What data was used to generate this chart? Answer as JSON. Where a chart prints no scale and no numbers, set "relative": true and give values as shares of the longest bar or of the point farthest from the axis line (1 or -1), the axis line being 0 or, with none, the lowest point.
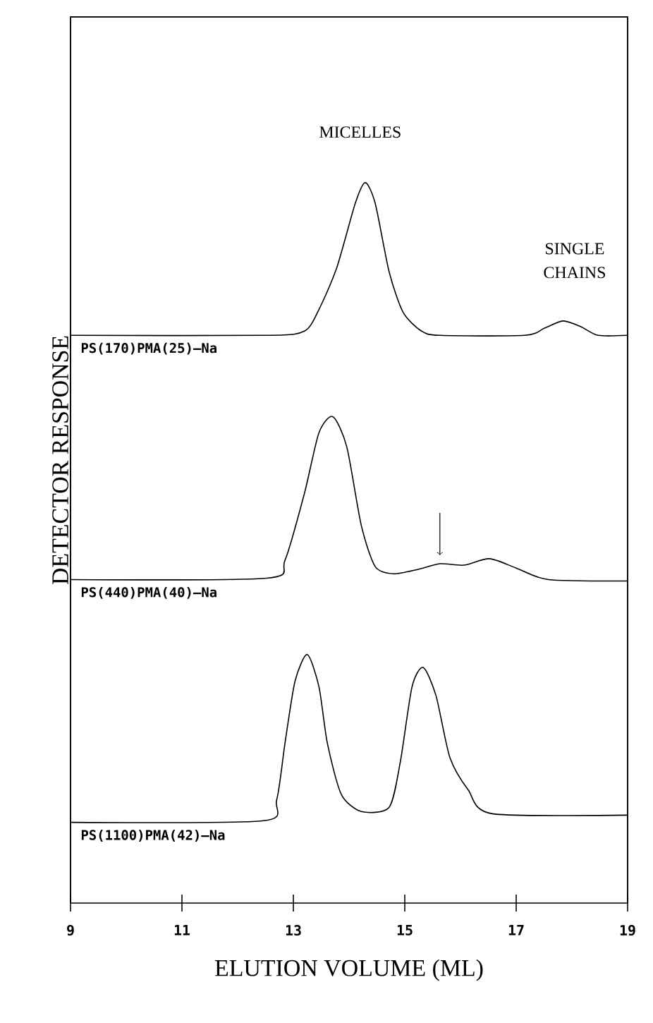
{
  "chart_data": {
    "type": "line",
    "relative": true,
    "xlabel": "ELUTION VOLUME (ML)",
    "ylabel": "DETECTOR RESPONSE",
    "xlim": [
      9,
      19
    ],
    "xticks": [
      9,
      11,
      13,
      15,
      17,
      19
    ],
    "tick_labels": "x",
    "marker": "none",
    "line_style": "solid",
    "annotations": [
      "MICELLES",
      "SINGLE CHAINS"
    ],
    "series": [
      {
        "name": "PS(170)PMA(25)–Na",
        "color": "#000000",
        "x": [
          9,
          12.52,
          13.2,
          13.46,
          13.78,
          14.11,
          14.29,
          14.47,
          14.72,
          14.97,
          15.3,
          15.63,
          17.15,
          17.51,
          17.84,
          18.16,
          18.47,
          19
        ],
        "values": [
          0.788,
          0.788,
          0.794,
          0.824,
          0.882,
          0.971,
          1.0,
          0.971,
          0.876,
          0.82,
          0.794,
          0.788,
          0.788,
          0.798,
          0.808,
          0.8,
          0.788,
          0.788
        ]
      },
      {
        "name": "PS(440)PMA(40)–Na",
        "color": "#000000",
        "x": [
          9,
          12.52,
          12.85,
          13.2,
          13.46,
          13.71,
          13.96,
          14.22,
          14.47,
          14.8,
          15.23,
          15.63,
          16.06,
          16.52,
          17.0,
          17.58,
          19
        ],
        "values": [
          0.449,
          0.451,
          0.476,
          0.569,
          0.653,
          0.675,
          0.633,
          0.524,
          0.467,
          0.457,
          0.463,
          0.471,
          0.469,
          0.478,
          0.465,
          0.449,
          0.447
        ]
      },
      {
        "name": "PS(1100)PMA(42)–Na",
        "color": "#000000",
        "x": [
          9,
          12.44,
          12.7,
          12.85,
          13.03,
          13.25,
          13.46,
          13.61,
          13.86,
          14.22,
          14.72,
          14.92,
          15.13,
          15.33,
          15.56,
          15.81,
          16.14,
          16.57,
          19
        ],
        "values": [
          0.112,
          0.114,
          0.143,
          0.222,
          0.308,
          0.345,
          0.3,
          0.222,
          0.151,
          0.127,
          0.133,
          0.196,
          0.3,
          0.327,
          0.288,
          0.202,
          0.157,
          0.124,
          0.122
        ]
      }
    ]
  }
}
